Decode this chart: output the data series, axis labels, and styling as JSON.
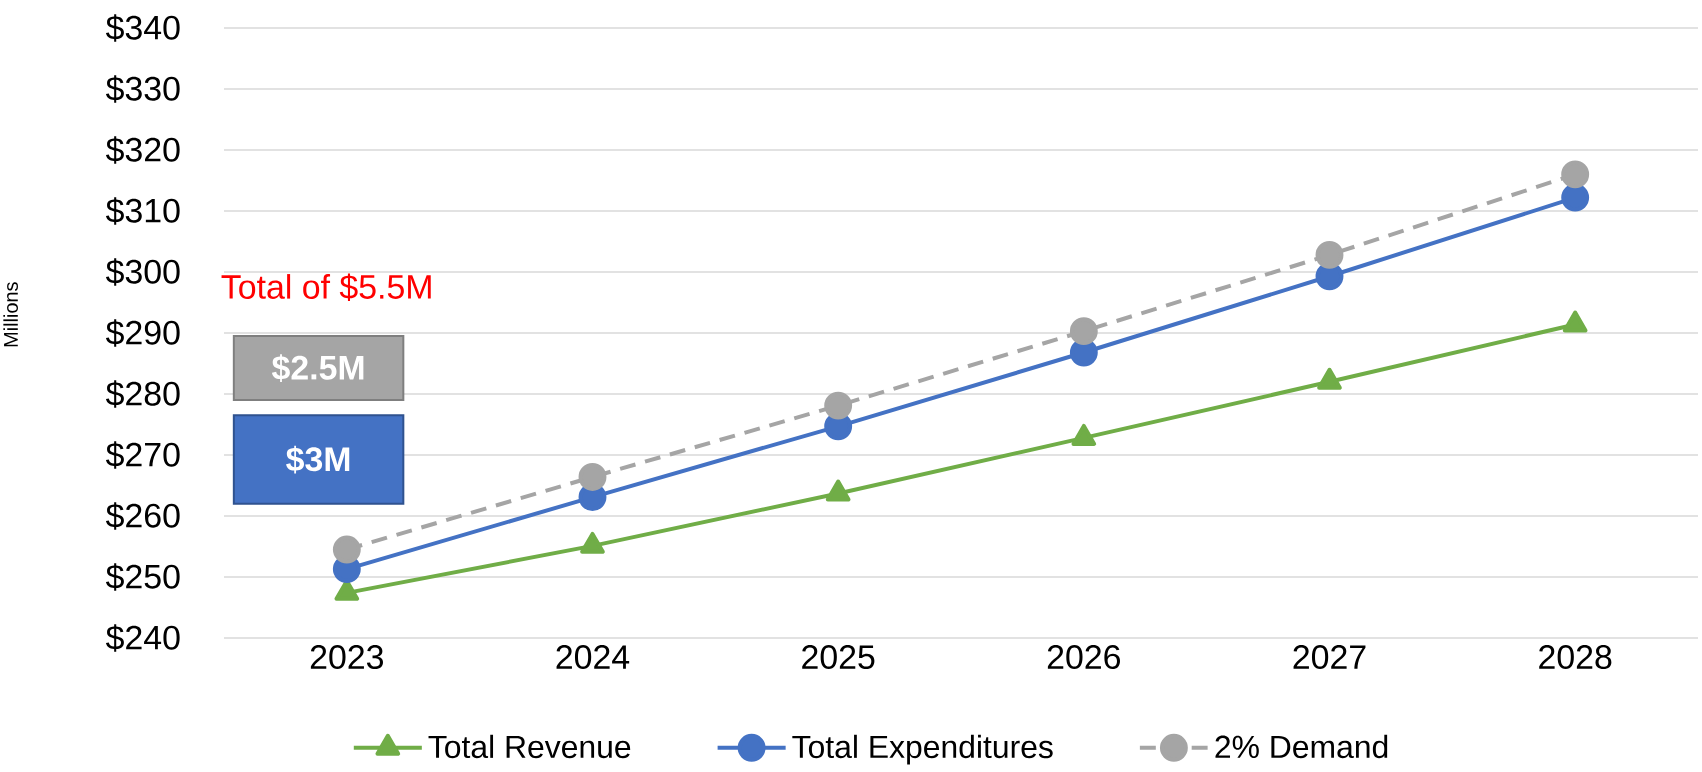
{
  "chart_data": {
    "type": "line",
    "ylabel": "Millions",
    "categories": [
      "2023",
      "2024",
      "2025",
      "2026",
      "2027",
      "2028"
    ],
    "series": [
      {
        "name": "Total Revenue",
        "color": "#70ad47",
        "marker": "triangle",
        "line_style": "solid",
        "values": [
          247.4,
          255.1,
          263.7,
          272.8,
          282.0,
          291.4
        ]
      },
      {
        "name": "Total Expenditures",
        "color": "#4472c4",
        "marker": "circle",
        "line_style": "solid",
        "values": [
          251.3,
          263.1,
          274.7,
          286.8,
          299.3,
          312.2
        ]
      },
      {
        "name": "2% Demand",
        "color": "#a5a5a5",
        "marker": "circle",
        "line_style": "dashed",
        "values": [
          254.5,
          266.4,
          278.1,
          290.3,
          302.8,
          316.0
        ]
      }
    ],
    "ylim": [
      240,
      340
    ],
    "yticks": [
      {
        "value": 240,
        "label": "$240"
      },
      {
        "value": 250,
        "label": "$250"
      },
      {
        "value": 260,
        "label": "$260"
      },
      {
        "value": 270,
        "label": "$270"
      },
      {
        "value": 280,
        "label": "$280"
      },
      {
        "value": 290,
        "label": "$290"
      },
      {
        "value": 300,
        "label": "$300"
      },
      {
        "value": 310,
        "label": "$310"
      },
      {
        "value": 320,
        "label": "$320"
      },
      {
        "value": 330,
        "label": "$330"
      },
      {
        "value": 340,
        "label": "$340"
      }
    ],
    "grid": "y",
    "legend": "bottom",
    "annotations": [
      "Total of $5.5M",
      "$2.5M",
      "$3M"
    ]
  }
}
